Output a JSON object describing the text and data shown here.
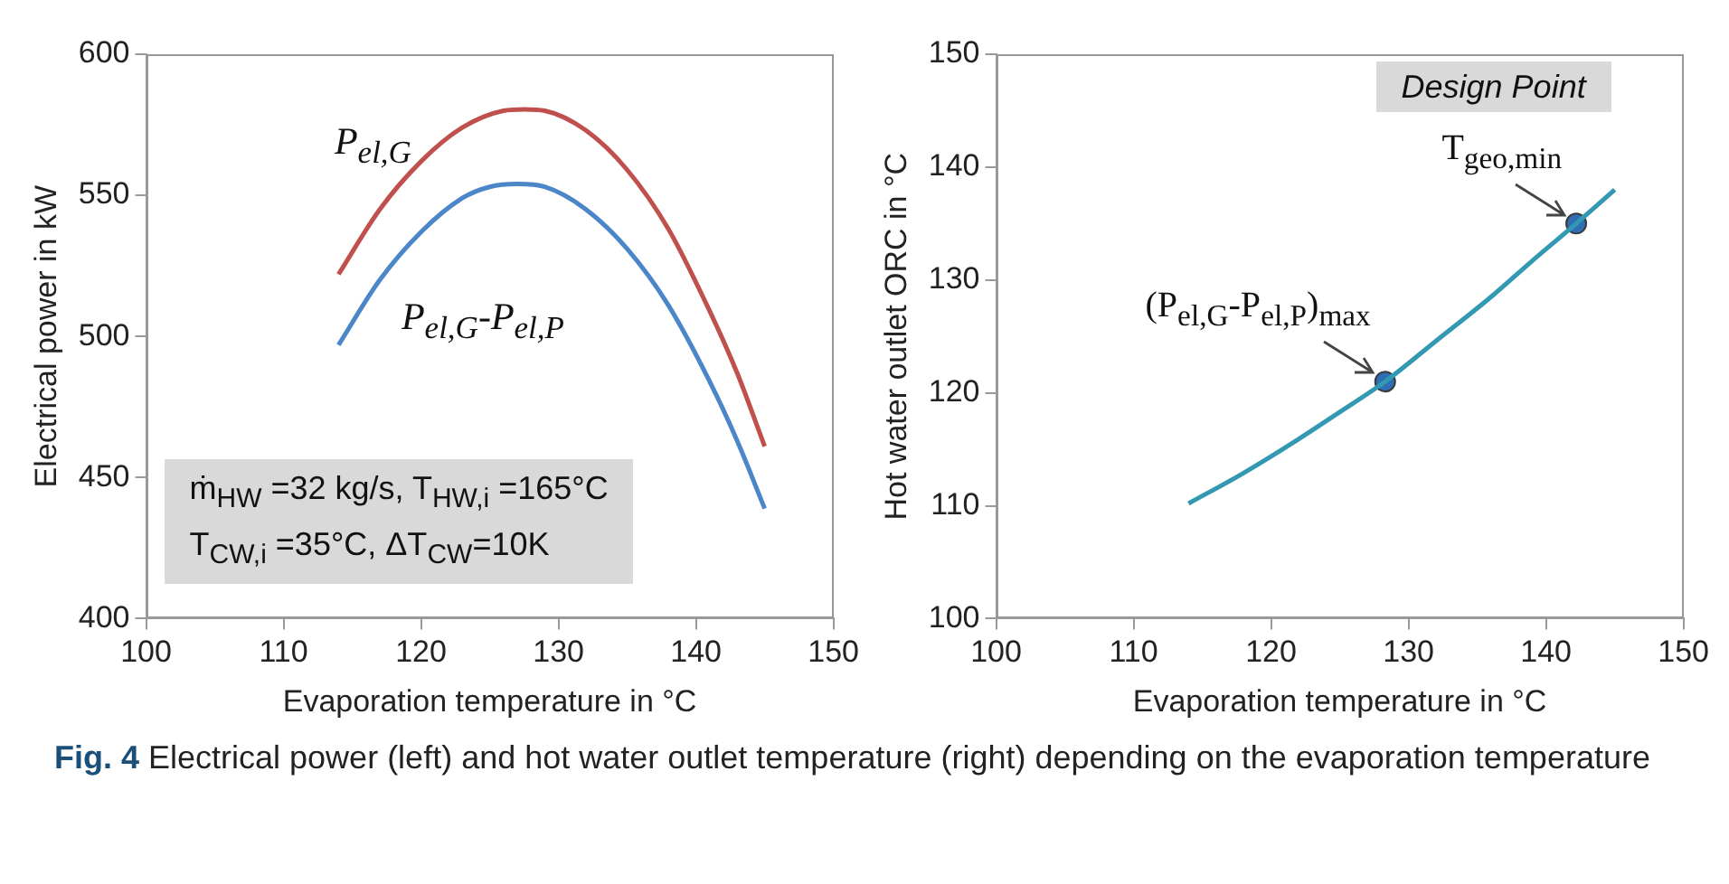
{
  "chart_data": [
    {
      "type": "line",
      "xlabel": "Evaporation temperature in °C",
      "ylabel": "Electrical power in kW",
      "xlim": [
        100,
        150
      ],
      "xticks": [
        100,
        110,
        120,
        130,
        140,
        150
      ],
      "ylim": [
        400,
        600
      ],
      "yticks": [
        400,
        450,
        500,
        550,
        600
      ],
      "series": [
        {
          "name": "P$_{el,G}$",
          "color": "#c0504d",
          "marker": "none",
          "x": [
            114,
            117,
            120,
            123,
            126,
            127.5,
            129,
            132,
            135,
            138,
            141,
            143,
            145
          ],
          "values": [
            522,
            545,
            562,
            574,
            580,
            580.5,
            580,
            573,
            559,
            538,
            509,
            487,
            461
          ]
        },
        {
          "name": "P$_{el,G}$-P$_{el,P}$",
          "color": "#4a86c8",
          "marker": "none",
          "x": [
            114,
            117,
            120,
            123,
            125,
            127,
            129,
            132,
            135,
            138,
            141,
            143,
            145
          ],
          "values": [
            497,
            520,
            537,
            549,
            553,
            554,
            553,
            545,
            531,
            511,
            484,
            463,
            439
          ]
        }
      ],
      "annotations": [
        "ṁ$_{HW}$ =32 kg/s, T$_{HW,i}$ =165°C",
        "T$_{CW,i}$ =35°C, ΔT$_{CW}$=10K"
      ]
    },
    {
      "type": "line",
      "xlabel": "Evaporation temperature in °C",
      "ylabel": "Hot water outlet ORC in °C",
      "xlim": [
        100,
        150
      ],
      "xticks": [
        100,
        110,
        120,
        130,
        140,
        150
      ],
      "ylim": [
        100,
        150
      ],
      "yticks": [
        100,
        110,
        120,
        130,
        140,
        150
      ],
      "series": [
        {
          "color": "#3399b3",
          "marker": "none",
          "x": [
            114,
            118,
            122,
            125,
            128.3,
            132,
            136,
            139,
            142.2,
            145
          ],
          "values": [
            110.2,
            112.9,
            115.9,
            118.3,
            121,
            124.6,
            128.5,
            131.7,
            135,
            138
          ]
        },
        {
          "type": "scatter",
          "color": "#2f6db5",
          "marker": "circle",
          "x": [
            128.3,
            142.2
          ],
          "values": [
            121,
            135
          ]
        }
      ],
      "annotations": [
        "Design Point",
        {
          "text": "(P$_{el,G}$-P$_{el,P}$)$_{max}$",
          "x": 128.3,
          "y": 121
        },
        {
          "text": "T$_{geo,min}$",
          "x": 142.2,
          "y": 135
        },
        "Fig. 4 Electrical power (left) and hot water outlet temperature (right) depending on the evaporation temperature"
      ]
    }
  ]
}
